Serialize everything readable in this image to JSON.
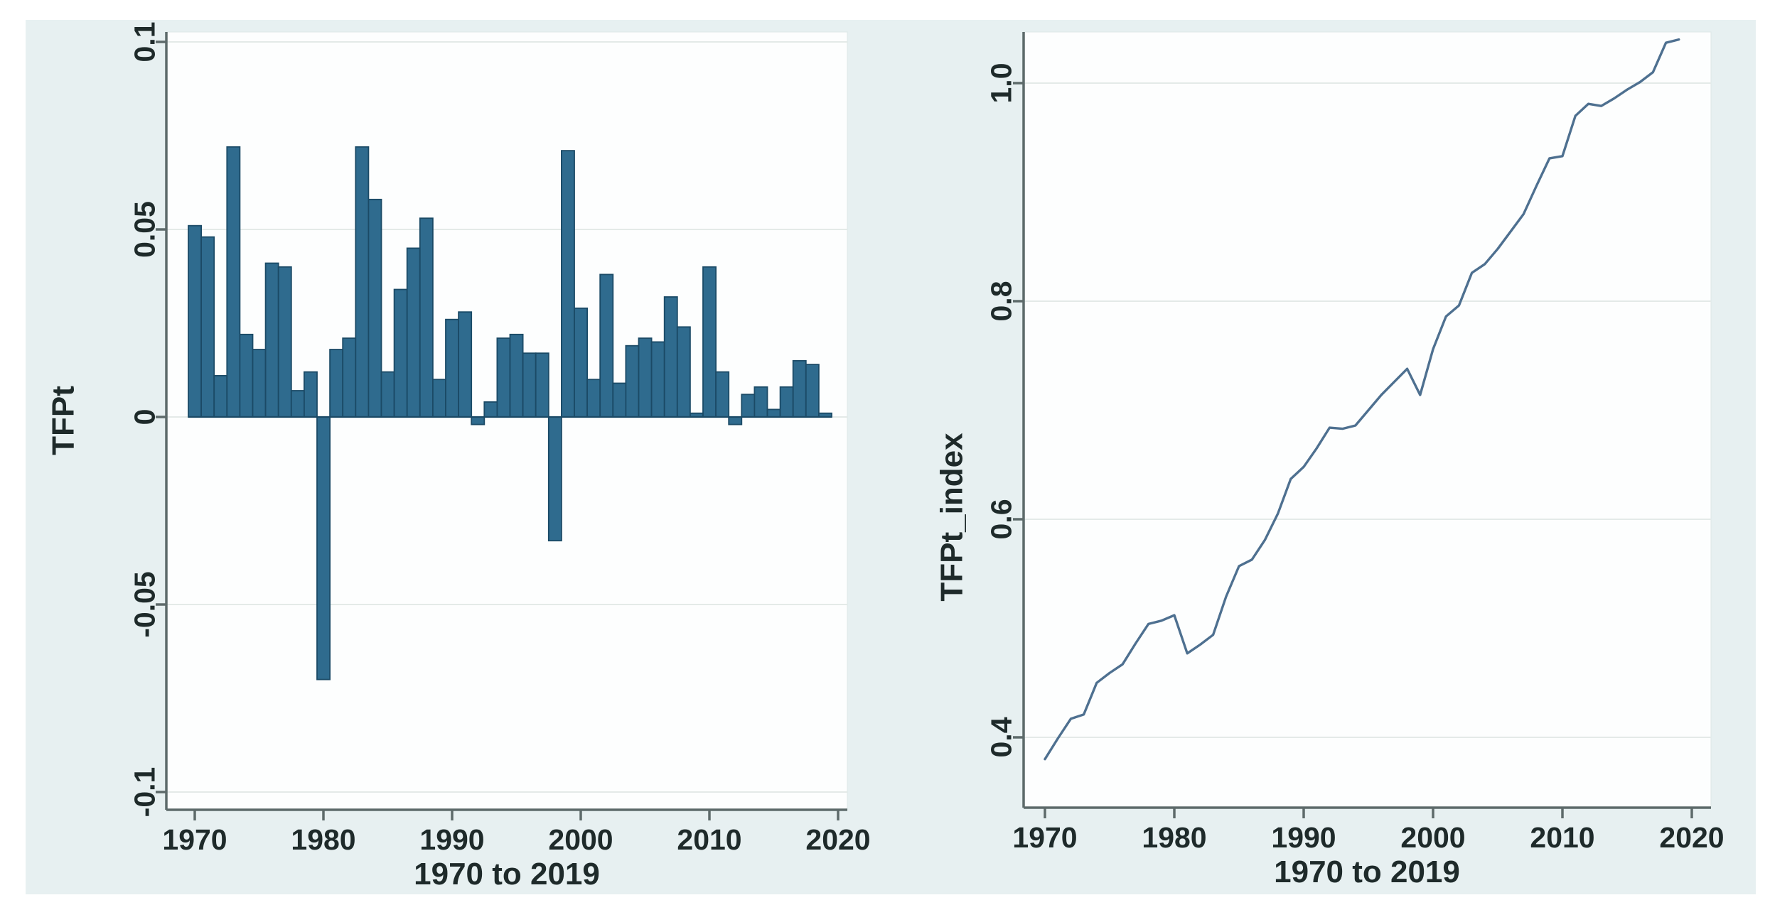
{
  "figure": {
    "background_color": "#ffffff",
    "canvas_color": "#e7f0f1",
    "plot_area_color": "#fdfefe",
    "gridline_color": "#e4eae8",
    "axis_color": "#5d6a6a",
    "text_color": "#1e2a2a"
  },
  "chart_data": [
    {
      "type": "bar",
      "title": "",
      "ylabel": "TFPt",
      "xlabel": "1970 to 2019",
      "bar_color": "#2f6b8e",
      "bar_outline_color": "#1b4a66",
      "grid": true,
      "legend": "none",
      "ylim": [
        -0.105,
        0.103
      ],
      "xlim": [
        1969.5,
        2020.7
      ],
      "yticks": [
        0.1,
        0.05,
        0,
        -0.05,
        -0.1
      ],
      "ytick_labels": [
        "0.1",
        "0.05",
        "0",
        "-0.05",
        "-0.1"
      ],
      "xticks": [
        1970,
        1980,
        1990,
        2000,
        2010,
        2020
      ],
      "xtick_labels": [
        "1970",
        "1980",
        "1990",
        "2000",
        "2010",
        "2020"
      ],
      "x": [
        1970,
        1971,
        1972,
        1973,
        1974,
        1975,
        1976,
        1977,
        1978,
        1979,
        1980,
        1981,
        1982,
        1983,
        1984,
        1985,
        1986,
        1987,
        1988,
        1989,
        1990,
        1991,
        1992,
        1993,
        1994,
        1995,
        1996,
        1997,
        1998,
        1999,
        2000,
        2001,
        2002,
        2003,
        2004,
        2005,
        2006,
        2007,
        2008,
        2009,
        2010,
        2011,
        2012,
        2013,
        2014,
        2015,
        2016,
        2017,
        2018,
        2019
      ],
      "values": [
        0.051,
        0.048,
        0.011,
        0.072,
        0.022,
        0.018,
        0.041,
        0.04,
        0.007,
        0.012,
        -0.07,
        0.018,
        0.021,
        0.072,
        0.058,
        0.012,
        0.034,
        0.045,
        0.053,
        0.01,
        0.026,
        0.028,
        -0.002,
        0.004,
        0.021,
        0.022,
        0.017,
        0.017,
        -0.033,
        0.071,
        0.029,
        0.01,
        0.038,
        0.009,
        0.019,
        0.021,
        0.02,
        0.032,
        0.024,
        0.001,
        0.04,
        0.012,
        -0.002,
        0.006,
        0.008,
        0.002,
        0.008,
        0.015,
        0.014,
        0.001
      ]
    },
    {
      "type": "line",
      "title": "",
      "ylabel": "TFPt_index",
      "xlabel": "1970 to 2019",
      "line_color": "#4e7090",
      "grid": true,
      "legend": "none",
      "ylim": [
        0.36,
        1.047
      ],
      "xlim": [
        1969.5,
        2021.5
      ],
      "yticks": [
        1.0,
        0.8,
        0.6,
        0.4
      ],
      "ytick_labels": [
        "1.0",
        "0.8",
        "0.6",
        "0.4"
      ],
      "xticks": [
        1970,
        1980,
        1990,
        2000,
        2010,
        2020
      ],
      "xtick_labels": [
        "1970",
        "1980",
        "1990",
        "2000",
        "2010",
        "2020"
      ],
      "x": [
        1970,
        1971,
        1972,
        1973,
        1974,
        1975,
        1976,
        1977,
        1978,
        1979,
        1980,
        1981,
        1982,
        1983,
        1984,
        1985,
        1986,
        1987,
        1988,
        1989,
        1990,
        1991,
        1992,
        1993,
        1994,
        1995,
        1996,
        1997,
        1998,
        1999,
        2000,
        2001,
        2002,
        2003,
        2004,
        2005,
        2006,
        2007,
        2008,
        2009,
        2010,
        2011,
        2012,
        2013,
        2014,
        2015,
        2016,
        2017,
        2018,
        2019
      ],
      "values": [
        0.38,
        0.399,
        0.417,
        0.421,
        0.45,
        0.459,
        0.467,
        0.486,
        0.504,
        0.507,
        0.512,
        0.477,
        0.485,
        0.494,
        0.529,
        0.557,
        0.563,
        0.581,
        0.605,
        0.637,
        0.648,
        0.665,
        0.684,
        0.683,
        0.686,
        0.7,
        0.714,
        0.726,
        0.738,
        0.714,
        0.756,
        0.786,
        0.796,
        0.826,
        0.834,
        0.848,
        0.864,
        0.88,
        0.906,
        0.931,
        0.933,
        0.97,
        0.981,
        0.979,
        0.986,
        0.994,
        1.001,
        1.01,
        1.037,
        1.04
      ]
    }
  ]
}
